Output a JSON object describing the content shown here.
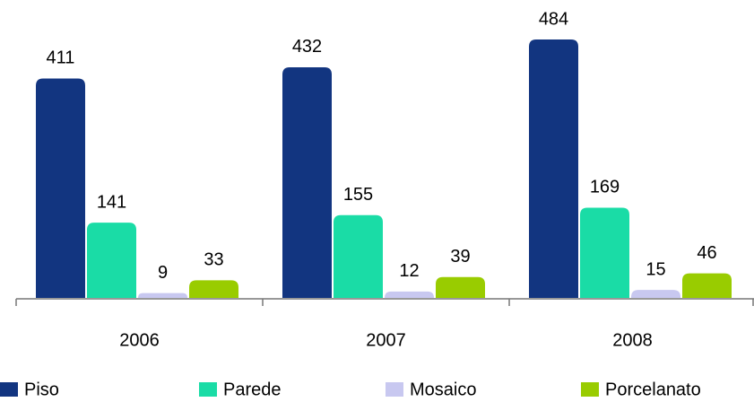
{
  "chart_data": {
    "type": "bar",
    "categories": [
      "2006",
      "2007",
      "2008"
    ],
    "series": [
      {
        "name": "Piso",
        "color": "#123580",
        "values": [
          411,
          432,
          484
        ]
      },
      {
        "name": "Parede",
        "color": "#1adca6",
        "values": [
          141,
          155,
          169
        ]
      },
      {
        "name": "Mosaico",
        "color": "#c8c8f0",
        "values": [
          9,
          12,
          15
        ]
      },
      {
        "name": "Porcelanato",
        "color": "#99cc00",
        "values": [
          33,
          39,
          46
        ]
      }
    ],
    "legend": "bottom"
  }
}
